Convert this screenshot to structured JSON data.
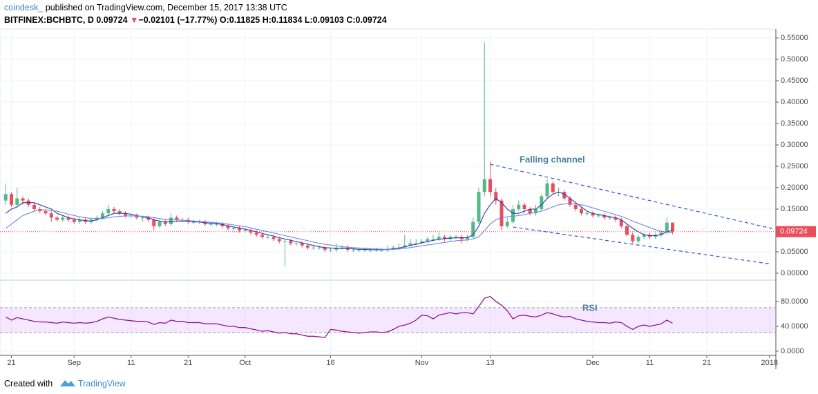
{
  "header": {
    "author": "coindesk_",
    "published": "published on TradingView.com, December 15, 2017 13:38 UTC",
    "symbol": "BITFINEX:BCHBTC, D",
    "last": "0.09724",
    "arrow": "▼",
    "change": "−0.02101 (−17.77%)",
    "ohlc": "O:0.11825 H:0.11834 L:0.09103 C:0.09724"
  },
  "footer": {
    "created": "Created with",
    "brand": "TradingView"
  },
  "chart_data": [
    {
      "type": "candlestick",
      "up_color": "#53b987",
      "down_color": "#eb4d5c",
      "xlim": [
        "2017-08-19",
        "2018-01-02"
      ],
      "xticks": [
        {
          "value": "2017-08-21",
          "label": "21"
        },
        {
          "value": "2017-09-01",
          "label": "Sep"
        },
        {
          "value": "2017-09-11",
          "label": "11"
        },
        {
          "value": "2017-09-21",
          "label": "21"
        },
        {
          "value": "2017-10-01",
          "label": "Oct"
        },
        {
          "value": "2017-10-16",
          "label": "16"
        },
        {
          "value": "2017-11-01",
          "label": "Nov"
        },
        {
          "value": "2017-11-13",
          "label": "13"
        },
        {
          "value": "2017-12-01",
          "label": "Dec"
        },
        {
          "value": "2017-12-11",
          "label": "11"
        },
        {
          "value": "2017-12-21",
          "label": "21"
        },
        {
          "value": "2018-01-01",
          "label": "2018"
        }
      ],
      "ylim": [
        -0.0145,
        0.571
      ],
      "yticks": [
        {
          "value": 0,
          "label": "0.00000"
        },
        {
          "value": 0.05,
          "label": "0.05000"
        },
        {
          "value": 0.1,
          "label": "0.10000"
        },
        {
          "value": 0.15,
          "label": "0.15000"
        },
        {
          "value": 0.2,
          "label": "0.20000"
        },
        {
          "value": 0.25,
          "label": "0.25000"
        },
        {
          "value": 0.3,
          "label": "0.30000"
        },
        {
          "value": 0.35,
          "label": "0.35000"
        },
        {
          "value": 0.4,
          "label": "0.40000"
        },
        {
          "value": 0.45,
          "label": "0.45000"
        },
        {
          "value": 0.5,
          "label": "0.50000"
        },
        {
          "value": 0.55,
          "label": "0.55000"
        }
      ],
      "grid": true,
      "x": [
        "2017-08-20",
        "2017-08-21",
        "2017-08-22",
        "2017-08-23",
        "2017-08-24",
        "2017-08-25",
        "2017-08-26",
        "2017-08-27",
        "2017-08-28",
        "2017-08-29",
        "2017-08-30",
        "2017-08-31",
        "2017-09-01",
        "2017-09-02",
        "2017-09-03",
        "2017-09-04",
        "2017-09-05",
        "2017-09-06",
        "2017-09-07",
        "2017-09-08",
        "2017-09-09",
        "2017-09-10",
        "2017-09-11",
        "2017-09-12",
        "2017-09-13",
        "2017-09-14",
        "2017-09-15",
        "2017-09-16",
        "2017-09-17",
        "2017-09-18",
        "2017-09-19",
        "2017-09-20",
        "2017-09-21",
        "2017-09-22",
        "2017-09-23",
        "2017-09-24",
        "2017-09-25",
        "2017-09-26",
        "2017-09-27",
        "2017-09-28",
        "2017-09-29",
        "2017-09-30",
        "2017-10-01",
        "2017-10-02",
        "2017-10-03",
        "2017-10-04",
        "2017-10-05",
        "2017-10-06",
        "2017-10-07",
        "2017-10-08",
        "2017-10-09",
        "2017-10-10",
        "2017-10-11",
        "2017-10-12",
        "2017-10-13",
        "2017-10-14",
        "2017-10-15",
        "2017-10-16",
        "2017-10-17",
        "2017-10-18",
        "2017-10-19",
        "2017-10-20",
        "2017-10-21",
        "2017-10-22",
        "2017-10-23",
        "2017-10-24",
        "2017-10-25",
        "2017-10-26",
        "2017-10-27",
        "2017-10-28",
        "2017-10-29",
        "2017-10-30",
        "2017-10-31",
        "2017-11-01",
        "2017-11-02",
        "2017-11-03",
        "2017-11-04",
        "2017-11-05",
        "2017-11-06",
        "2017-11-07",
        "2017-11-08",
        "2017-11-09",
        "2017-11-10",
        "2017-11-11",
        "2017-11-12",
        "2017-11-13",
        "2017-11-14",
        "2017-11-15",
        "2017-11-16",
        "2017-11-17",
        "2017-11-18",
        "2017-11-19",
        "2017-11-20",
        "2017-11-21",
        "2017-11-22",
        "2017-11-23",
        "2017-11-24",
        "2017-11-25",
        "2017-11-26",
        "2017-11-27",
        "2017-11-28",
        "2017-11-29",
        "2017-11-30",
        "2017-12-01",
        "2017-12-02",
        "2017-12-03",
        "2017-12-04",
        "2017-12-05",
        "2017-12-06",
        "2017-12-07",
        "2017-12-08",
        "2017-12-09",
        "2017-12-10",
        "2017-12-11",
        "2017-12-12",
        "2017-12-13",
        "2017-12-14",
        "2017-12-15"
      ],
      "open": [
        0.17,
        0.185,
        0.16,
        0.175,
        0.17,
        0.16,
        0.15,
        0.145,
        0.14,
        0.13,
        0.125,
        0.13,
        0.125,
        0.12,
        0.125,
        0.12,
        0.125,
        0.13,
        0.14,
        0.15,
        0.145,
        0.14,
        0.135,
        0.135,
        0.13,
        0.13,
        0.125,
        0.11,
        0.12,
        0.115,
        0.13,
        0.125,
        0.125,
        0.12,
        0.12,
        0.12,
        0.115,
        0.115,
        0.115,
        0.11,
        0.105,
        0.105,
        0.1,
        0.1,
        0.095,
        0.09,
        0.085,
        0.085,
        0.08,
        0.075,
        0.075,
        0.07,
        0.07,
        0.065,
        0.06,
        0.06,
        0.06,
        0.055,
        0.055,
        0.06,
        0.06,
        0.055,
        0.055,
        0.055,
        0.055,
        0.055,
        0.055,
        0.055,
        0.055,
        0.06,
        0.06,
        0.065,
        0.07,
        0.07,
        0.075,
        0.08,
        0.08,
        0.085,
        0.08,
        0.085,
        0.085,
        0.08,
        0.085,
        0.12,
        0.19,
        0.22,
        0.19,
        0.17,
        0.11,
        0.12,
        0.15,
        0.16,
        0.15,
        0.14,
        0.15,
        0.18,
        0.21,
        0.19,
        0.19,
        0.175,
        0.16,
        0.15,
        0.14,
        0.14,
        0.135,
        0.135,
        0.13,
        0.13,
        0.125,
        0.11,
        0.09,
        0.075,
        0.085,
        0.09,
        0.085,
        0.09,
        0.095,
        0.11825
      ],
      "high": [
        0.21,
        0.19,
        0.2,
        0.18,
        0.175,
        0.165,
        0.155,
        0.15,
        0.145,
        0.135,
        0.135,
        0.135,
        0.13,
        0.13,
        0.13,
        0.13,
        0.135,
        0.145,
        0.16,
        0.155,
        0.15,
        0.145,
        0.14,
        0.14,
        0.135,
        0.135,
        0.13,
        0.125,
        0.125,
        0.14,
        0.135,
        0.13,
        0.13,
        0.125,
        0.125,
        0.125,
        0.12,
        0.12,
        0.12,
        0.115,
        0.11,
        0.11,
        0.105,
        0.105,
        0.1,
        0.095,
        0.09,
        0.09,
        0.085,
        0.08,
        0.08,
        0.075,
        0.075,
        0.07,
        0.065,
        0.065,
        0.065,
        0.06,
        0.07,
        0.065,
        0.065,
        0.06,
        0.06,
        0.06,
        0.06,
        0.06,
        0.06,
        0.065,
        0.065,
        0.07,
        0.09,
        0.08,
        0.08,
        0.08,
        0.085,
        0.09,
        0.095,
        0.09,
        0.09,
        0.09,
        0.09,
        0.09,
        0.13,
        0.2,
        0.54,
        0.26,
        0.2,
        0.175,
        0.13,
        0.16,
        0.17,
        0.165,
        0.155,
        0.16,
        0.185,
        0.22,
        0.215,
        0.2,
        0.195,
        0.18,
        0.165,
        0.155,
        0.145,
        0.145,
        0.14,
        0.14,
        0.135,
        0.135,
        0.13,
        0.115,
        0.095,
        0.09,
        0.095,
        0.095,
        0.095,
        0.1,
        0.13,
        0.11834
      ],
      "low": [
        0.16,
        0.155,
        0.155,
        0.16,
        0.155,
        0.145,
        0.14,
        0.135,
        0.12,
        0.12,
        0.12,
        0.12,
        0.115,
        0.115,
        0.115,
        0.115,
        0.12,
        0.125,
        0.135,
        0.14,
        0.135,
        0.13,
        0.13,
        0.125,
        0.12,
        0.12,
        0.1,
        0.105,
        0.11,
        0.11,
        0.12,
        0.12,
        0.115,
        0.115,
        0.115,
        0.11,
        0.11,
        0.11,
        0.105,
        0.1,
        0.1,
        0.095,
        0.095,
        0.09,
        0.085,
        0.08,
        0.08,
        0.075,
        0.07,
        0.015,
        0.065,
        0.065,
        0.06,
        0.055,
        0.055,
        0.055,
        0.05,
        0.05,
        0.05,
        0.055,
        0.05,
        0.05,
        0.05,
        0.05,
        0.05,
        0.05,
        0.05,
        0.05,
        0.055,
        0.055,
        0.06,
        0.065,
        0.065,
        0.07,
        0.07,
        0.075,
        0.075,
        0.075,
        0.075,
        0.08,
        0.07,
        0.075,
        0.08,
        0.115,
        0.18,
        0.18,
        0.16,
        0.1,
        0.105,
        0.115,
        0.145,
        0.14,
        0.135,
        0.135,
        0.145,
        0.175,
        0.185,
        0.18,
        0.17,
        0.155,
        0.145,
        0.135,
        0.135,
        0.13,
        0.13,
        0.125,
        0.125,
        0.12,
        0.105,
        0.085,
        0.07,
        0.07,
        0.08,
        0.08,
        0.08,
        0.085,
        0.09,
        0.09103
      ],
      "close": [
        0.185,
        0.16,
        0.175,
        0.17,
        0.16,
        0.15,
        0.145,
        0.14,
        0.13,
        0.125,
        0.13,
        0.125,
        0.12,
        0.125,
        0.12,
        0.125,
        0.13,
        0.14,
        0.15,
        0.145,
        0.14,
        0.135,
        0.135,
        0.13,
        0.13,
        0.125,
        0.11,
        0.12,
        0.115,
        0.13,
        0.125,
        0.125,
        0.12,
        0.12,
        0.12,
        0.115,
        0.115,
        0.115,
        0.11,
        0.105,
        0.105,
        0.1,
        0.1,
        0.095,
        0.09,
        0.085,
        0.085,
        0.08,
        0.075,
        0.075,
        0.07,
        0.07,
        0.065,
        0.06,
        0.06,
        0.06,
        0.055,
        0.055,
        0.06,
        0.06,
        0.055,
        0.055,
        0.055,
        0.055,
        0.055,
        0.055,
        0.055,
        0.055,
        0.06,
        0.06,
        0.065,
        0.07,
        0.07,
        0.075,
        0.08,
        0.08,
        0.085,
        0.08,
        0.085,
        0.085,
        0.08,
        0.085,
        0.12,
        0.19,
        0.22,
        0.19,
        0.17,
        0.11,
        0.12,
        0.15,
        0.16,
        0.15,
        0.14,
        0.15,
        0.18,
        0.21,
        0.19,
        0.19,
        0.175,
        0.16,
        0.15,
        0.14,
        0.14,
        0.135,
        0.135,
        0.13,
        0.13,
        0.125,
        0.11,
        0.09,
        0.075,
        0.085,
        0.09,
        0.085,
        0.09,
        0.095,
        0.11825,
        0.09724
      ],
      "lines": [
        {
          "color": "#2a3aa8",
          "values": [
            0.14,
            0.15,
            0.155,
            0.165,
            0.165,
            0.165,
            0.16,
            0.155,
            0.15,
            0.14,
            0.135,
            0.13,
            0.127,
            0.125,
            0.123,
            0.122,
            0.125,
            0.13,
            0.135,
            0.14,
            0.14,
            0.14,
            0.138,
            0.135,
            0.132,
            0.13,
            0.125,
            0.122,
            0.12,
            0.12,
            0.122,
            0.122,
            0.121,
            0.12,
            0.12,
            0.118,
            0.117,
            0.116,
            0.114,
            0.111,
            0.108,
            0.106,
            0.103,
            0.1,
            0.097,
            0.093,
            0.09,
            0.087,
            0.083,
            0.08,
            0.077,
            0.074,
            0.071,
            0.068,
            0.065,
            0.062,
            0.06,
            0.059,
            0.058,
            0.058,
            0.058,
            0.057,
            0.056,
            0.056,
            0.055,
            0.055,
            0.055,
            0.056,
            0.057,
            0.059,
            0.062,
            0.065,
            0.068,
            0.071,
            0.074,
            0.077,
            0.079,
            0.081,
            0.082,
            0.083,
            0.083,
            0.083,
            0.09,
            0.11,
            0.14,
            0.16,
            0.175,
            0.165,
            0.15,
            0.14,
            0.14,
            0.145,
            0.15,
            0.15,
            0.16,
            0.175,
            0.185,
            0.19,
            0.185,
            0.175,
            0.165,
            0.155,
            0.145,
            0.14,
            0.137,
            0.135,
            0.132,
            0.13,
            0.125,
            0.115,
            0.105,
            0.097,
            0.09,
            0.088,
            0.088,
            0.09,
            0.097,
            0.1
          ]
        },
        {
          "color": "#6f86e6",
          "values": [
            0.105,
            0.115,
            0.125,
            0.135,
            0.14,
            0.145,
            0.148,
            0.148,
            0.147,
            0.145,
            0.142,
            0.138,
            0.135,
            0.132,
            0.13,
            0.128,
            0.128,
            0.128,
            0.13,
            0.132,
            0.133,
            0.134,
            0.134,
            0.134,
            0.133,
            0.132,
            0.13,
            0.128,
            0.126,
            0.125,
            0.125,
            0.124,
            0.123,
            0.122,
            0.121,
            0.12,
            0.119,
            0.118,
            0.117,
            0.115,
            0.113,
            0.111,
            0.109,
            0.106,
            0.103,
            0.1,
            0.097,
            0.094,
            0.091,
            0.088,
            0.085,
            0.082,
            0.079,
            0.076,
            0.073,
            0.07,
            0.068,
            0.066,
            0.064,
            0.062,
            0.061,
            0.06,
            0.059,
            0.058,
            0.057,
            0.057,
            0.056,
            0.056,
            0.056,
            0.057,
            0.058,
            0.06,
            0.062,
            0.064,
            0.066,
            0.068,
            0.07,
            0.072,
            0.074,
            0.076,
            0.077,
            0.078,
            0.08,
            0.085,
            0.1,
            0.115,
            0.125,
            0.13,
            0.132,
            0.133,
            0.135,
            0.137,
            0.14,
            0.142,
            0.145,
            0.15,
            0.155,
            0.16,
            0.162,
            0.163,
            0.162,
            0.16,
            0.157,
            0.153,
            0.149,
            0.145,
            0.141,
            0.137,
            0.133,
            0.128,
            0.122,
            0.117,
            0.112,
            0.107,
            0.102,
            0.098,
            0.096,
            0.095
          ]
        }
      ],
      "trendlines": [
        {
          "x": [
            "2017-11-13",
            "2018-01-02"
          ],
          "y": [
            0.255,
            0.103
          ]
        },
        {
          "x": [
            "2017-11-17",
            "2018-01-01"
          ],
          "y": [
            0.108,
            0.022
          ]
        }
      ],
      "trend_color": "#2f4fe0",
      "annotation": "Falling channel"
    },
    {
      "type": "line",
      "title": "RSI",
      "color": "#8e1599",
      "band": [
        30,
        70
      ],
      "band_color": "#9915ff",
      "ylim": [
        -6.7,
        112
      ],
      "yticks": [
        {
          "value": 0,
          "label": "0.0000"
        },
        {
          "value": 40,
          "label": "40.0000"
        },
        {
          "value": 80,
          "label": "80.0000"
        }
      ],
      "values": [
        55,
        50,
        54,
        52,
        50,
        48,
        47,
        47,
        46,
        45,
        47,
        46,
        45,
        46,
        45,
        46,
        48,
        52,
        55,
        53,
        51,
        50,
        49,
        48,
        48,
        47,
        43,
        46,
        45,
        50,
        48,
        48,
        46,
        46,
        46,
        44,
        44,
        44,
        42,
        40,
        40,
        38,
        38,
        36,
        34,
        32,
        33,
        31,
        29,
        30,
        28,
        28,
        26,
        24,
        24,
        23,
        22,
        35,
        34,
        32,
        31,
        30,
        29,
        30,
        31,
        31,
        30,
        31,
        35,
        40,
        42,
        45,
        50,
        58,
        57,
        52,
        58,
        60,
        62,
        60,
        62,
        62,
        60,
        72,
        85,
        88,
        80,
        74,
        65,
        52,
        57,
        58,
        56,
        55,
        58,
        62,
        60,
        57,
        55,
        56,
        52,
        50,
        48,
        47,
        46,
        46,
        45,
        47,
        46,
        40,
        35,
        40,
        42,
        40,
        42,
        44,
        50,
        45
      ]
    }
  ]
}
